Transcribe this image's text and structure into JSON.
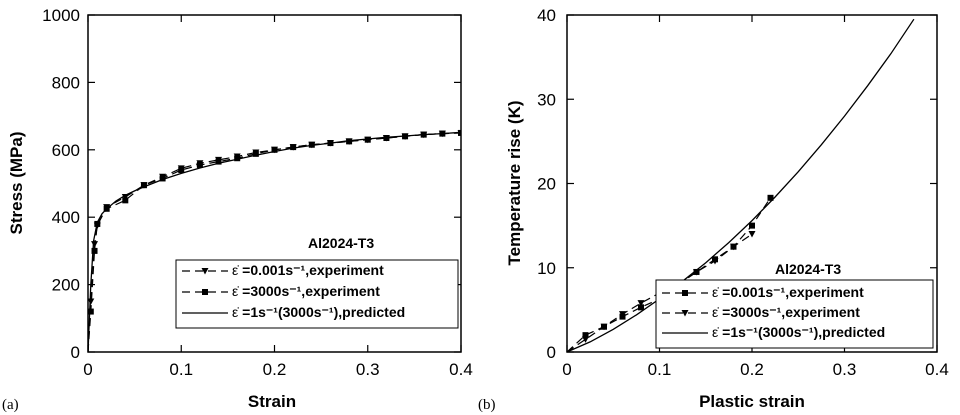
{
  "chart_data": [
    {
      "type": "line",
      "panel_label": "(a)",
      "title": "Al2024-T3",
      "xlabel": "Strain",
      "ylabel": "Stress (MPa)",
      "xlim": [
        0,
        0.4
      ],
      "ylim": [
        0,
        1000
      ],
      "xticks": [
        0,
        0.1,
        0.2,
        0.3,
        0.4
      ],
      "xtick_labels": [
        "0",
        "0.1",
        "0.2",
        "0.3",
        "0.4"
      ],
      "yticks": [
        0,
        200,
        400,
        600,
        800,
        1000
      ],
      "ytick_labels": [
        "0",
        "200",
        "400",
        "600",
        "800",
        "1000"
      ],
      "grid": false,
      "legend_position": "bottom-right",
      "series": [
        {
          "name": "=0.001s⁻¹,experiment",
          "symbol": "ε̇",
          "line": "dashed",
          "marker": "triangle-down",
          "x": [
            0,
            0.003,
            0.007,
            0.01,
            0.02,
            0.04,
            0.06,
            0.08,
            0.1,
            0.12,
            0.14,
            0.16,
            0.18,
            0.2,
            0.22,
            0.24,
            0.26,
            0.28,
            0.3,
            0.32,
            0.34,
            0.36,
            0.38,
            0.4
          ],
          "y": [
            0,
            150,
            320,
            375,
            430,
            460,
            495,
            520,
            545,
            560,
            570,
            580,
            592,
            600,
            608,
            615,
            620,
            625,
            630,
            635,
            640,
            645,
            648,
            650
          ]
        },
        {
          "name": "=3000s⁻¹,experiment",
          "symbol": "ε̇",
          "line": "dashed",
          "marker": "square",
          "x": [
            0,
            0.003,
            0.007,
            0.01,
            0.02,
            0.04,
            0.06,
            0.08,
            0.1,
            0.12,
            0.14,
            0.16,
            0.18,
            0.2,
            0.22,
            0.24,
            0.26,
            0.28,
            0.3,
            0.32,
            0.34,
            0.36,
            0.38,
            0.4
          ],
          "y": [
            0,
            120,
            300,
            380,
            425,
            450,
            495,
            515,
            540,
            555,
            565,
            575,
            588,
            600,
            608,
            615,
            620,
            625,
            630,
            635,
            640,
            645,
            648,
            650
          ]
        },
        {
          "name": "=1s⁻¹(3000s⁻¹),predicted",
          "symbol": "ε̇",
          "line": "solid",
          "marker": "none",
          "x": [
            0,
            0.003,
            0.006,
            0.01,
            0.015,
            0.02,
            0.03,
            0.04,
            0.05,
            0.06,
            0.08,
            0.1,
            0.12,
            0.14,
            0.16,
            0.18,
            0.2,
            0.22,
            0.24,
            0.26,
            0.28,
            0.3,
            0.32,
            0.34,
            0.36,
            0.38,
            0.4
          ],
          "y": [
            0,
            200,
            330,
            385,
            410,
            425,
            448,
            465,
            478,
            490,
            512,
            530,
            546,
            560,
            572,
            584,
            595,
            605,
            613,
            620,
            627,
            632,
            637,
            641,
            645,
            648,
            652
          ]
        }
      ]
    },
    {
      "type": "line",
      "panel_label": "(b)",
      "title": "Al2024-T3",
      "xlabel": "Plastic strain",
      "ylabel": "Temperature rise (K)",
      "xlim": [
        0,
        0.4
      ],
      "ylim": [
        0,
        40
      ],
      "xticks": [
        0,
        0.1,
        0.2,
        0.3,
        0.4
      ],
      "xtick_labels": [
        "0",
        "0.1",
        "0.2",
        "0.3",
        "0.4"
      ],
      "yticks": [
        0,
        10,
        20,
        30,
        40
      ],
      "ytick_labels": [
        "0",
        "10",
        "20",
        "30",
        "40"
      ],
      "grid": false,
      "legend_position": "bottom-right",
      "series": [
        {
          "name": "=0.001s⁻¹,experiment",
          "symbol": "ε̇",
          "line": "dashed",
          "marker": "square",
          "x": [
            0,
            0.02,
            0.04,
            0.06,
            0.08,
            0.1,
            0.12,
            0.14,
            0.16,
            0.18,
            0.2,
            0.22
          ],
          "y": [
            0,
            2,
            3,
            4.2,
            5.3,
            6.3,
            8,
            9.5,
            11,
            12.5,
            15,
            18.3
          ]
        },
        {
          "name": "=3000s⁻¹,experiment",
          "symbol": "ε̇",
          "line": "dashed",
          "marker": "triangle-down",
          "x": [
            0,
            0.02,
            0.04,
            0.06,
            0.08,
            0.1,
            0.12,
            0.14,
            0.16,
            0.18,
            0.2
          ],
          "y": [
            0,
            1.5,
            3,
            4.5,
            5.8,
            7,
            8,
            9.5,
            10.8,
            12.5,
            14
          ]
        },
        {
          "name": "=1s⁻¹(3000s⁻¹),predicted",
          "symbol": "ε̇",
          "line": "solid",
          "marker": "none",
          "x": [
            0,
            0.025,
            0.05,
            0.075,
            0.1,
            0.125,
            0.15,
            0.175,
            0.2,
            0.225,
            0.25,
            0.275,
            0.3,
            0.325,
            0.35,
            0.375
          ],
          "y": [
            0,
            1.2,
            2.7,
            4.4,
            6.3,
            8.4,
            10.6,
            13,
            15.6,
            18.4,
            21.4,
            24.6,
            28,
            31.6,
            35.4,
            39.5
          ]
        }
      ]
    }
  ]
}
